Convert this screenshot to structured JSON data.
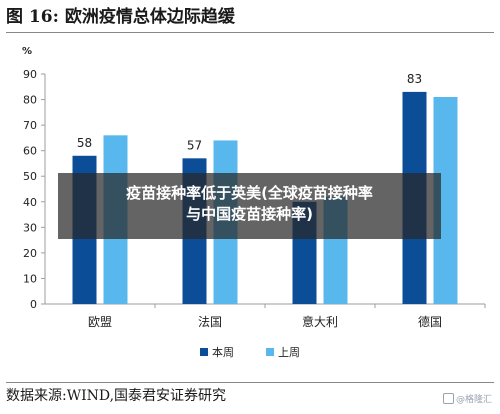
{
  "title": {
    "label": "图 16:",
    "text": "欧洲疫情总体边际趋缓"
  },
  "overlay": {
    "line1": "疫苗接种率低于英美(全球疫苗接种率",
    "line2": "与中国疫苗接种率)"
  },
  "source": "数据来源:WIND,国泰君安证券研究",
  "watermark": "@格隆汇",
  "colors": {
    "series1": "#0b4d96",
    "series2": "#58b7ec",
    "axis": "#9e9e9e",
    "text": "#222222"
  },
  "chart_data": {
    "type": "bar",
    "ylabel": "%",
    "ylim": [
      0,
      90
    ],
    "yticks": [
      0,
      10,
      20,
      30,
      40,
      50,
      60,
      70,
      80,
      90
    ],
    "categories": [
      "欧盟",
      "法国",
      "意大利",
      "德国"
    ],
    "series": [
      {
        "name": "本周",
        "values": [
          58,
          57,
          40,
          83
        ],
        "labels": [
          "58",
          "57",
          "",
          "83"
        ]
      },
      {
        "name": "上周",
        "values": [
          66,
          64,
          42,
          81
        ],
        "labels": [
          "",
          "",
          "",
          ""
        ]
      }
    ],
    "legend_position": "bottom"
  }
}
